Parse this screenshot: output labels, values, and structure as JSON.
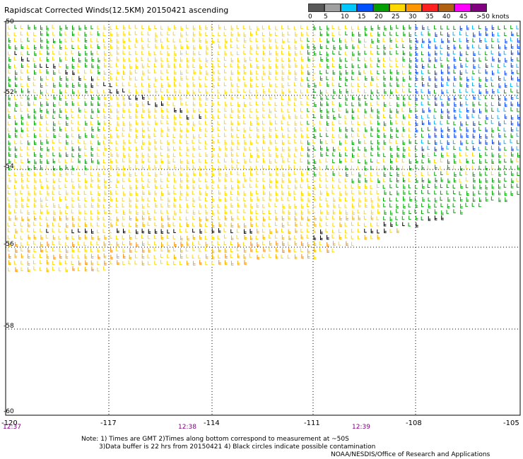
{
  "title": "Rapidscat Corrected Winds(12.5KM) 20150421 ascending",
  "legend": {
    "labels": [
      "0",
      "5",
      "10",
      "15",
      "20",
      "25",
      "30",
      "35",
      "40",
      "45",
      ">50 knots"
    ],
    "colors": [
      "#585858",
      "#a0a0a0",
      "#00c8ff",
      "#0050ff",
      "#00a000",
      "#ffd800",
      "#ff9600",
      "#ff2020",
      "#b06010",
      "#ff00ff",
      "#800080"
    ]
  },
  "axes": {
    "x_ticks": [
      "-120",
      "-117",
      "-114",
      "-111",
      "-108",
      "-105"
    ],
    "y_ticks": [
      "-50",
      "-52",
      "-54",
      "-56",
      "-58",
      "-60"
    ]
  },
  "times": [
    "12:37",
    "12:38",
    "12:39"
  ],
  "notes": [
    "Note: 1) Times are GMT 2)Times along bottom correspond to measurement at ~50S",
    "3)Data buffer is 22 hrs from 20150421 4) Black circles indicate possible contamination"
  ],
  "credit": "NOAA/NESDIS/Office of Research and Applications"
}
